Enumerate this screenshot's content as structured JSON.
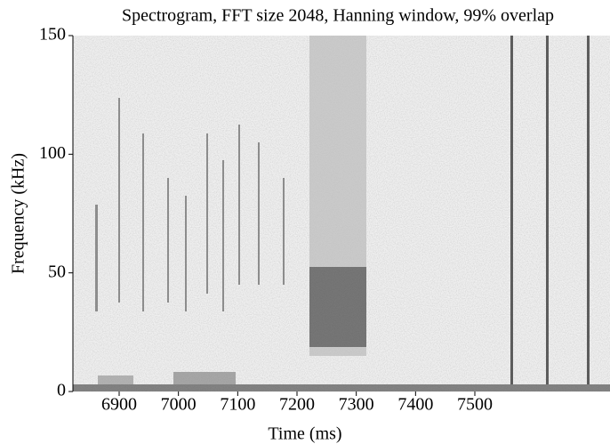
{
  "chart_data": {
    "type": "spectrogram",
    "title": "Spectrogram, FFT size 2048, Hanning window, 99% overlap",
    "x_label": "Time (ms)",
    "y_label": "Frequency (kHz)",
    "xlim": [
      6822,
      7728
    ],
    "xticks": [
      6900,
      7000,
      7100,
      7200,
      7300,
      7400,
      7500
    ],
    "ylim": [
      0,
      150
    ],
    "yticks": [
      0,
      50,
      100,
      150
    ]
  }
}
